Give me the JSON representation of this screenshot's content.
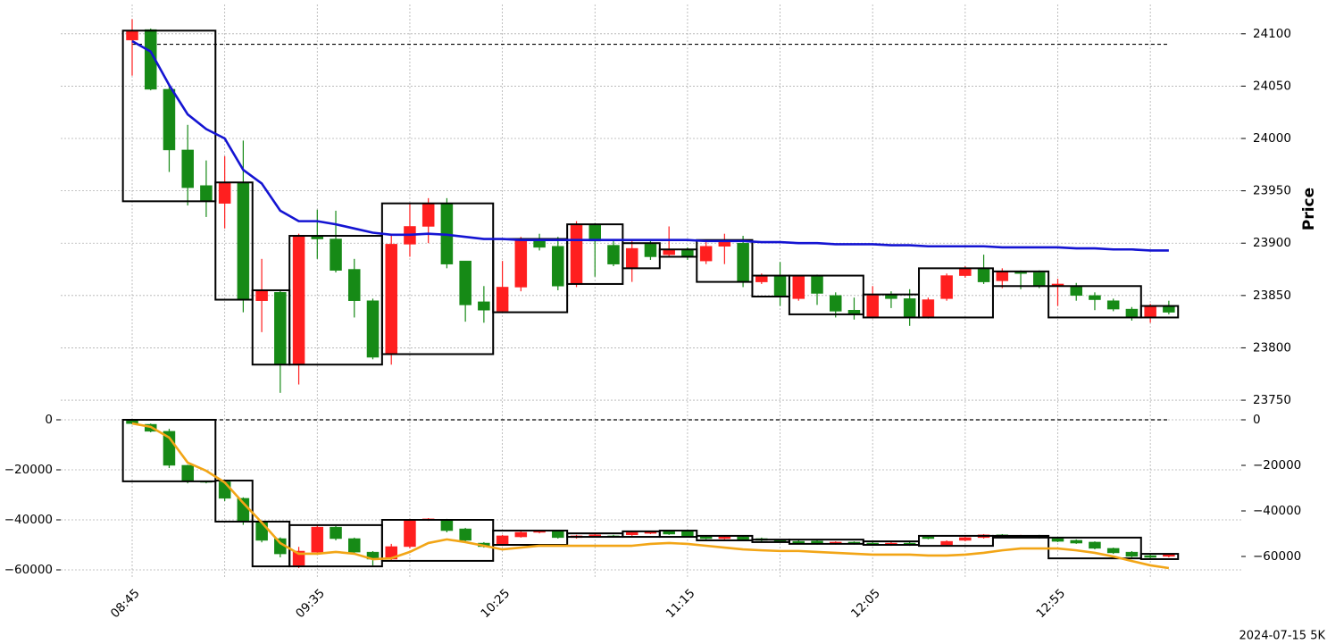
{
  "chart_data": {
    "type": "candlestick",
    "footnote": "2024-07-15 5K",
    "grid": true,
    "up_color": "#ff1f1f",
    "down_color": "#168a16",
    "box_color": "#000000",
    "categories": [
      "08:45",
      null,
      null,
      null,
      null,
      null,
      null,
      null,
      null,
      null,
      "09:35",
      null,
      null,
      null,
      null,
      null,
      null,
      null,
      null,
      null,
      "10:25",
      null,
      null,
      null,
      null,
      null,
      null,
      null,
      null,
      null,
      "11:15",
      null,
      null,
      null,
      null,
      null,
      null,
      null,
      null,
      null,
      "12:05",
      null,
      null,
      null,
      null,
      null,
      null,
      null,
      null,
      null,
      "12:55",
      null,
      null,
      null,
      null,
      null,
      null
    ],
    "panels": [
      {
        "ylabel": "Price",
        "ylim": [
          23741.5,
          24128
        ],
        "yticks": [
          23750,
          23800,
          23850,
          23900,
          23950,
          24000,
          24050,
          24100
        ],
        "reference": 24090,
        "open": [
          24094,
          24104,
          24047,
          23989,
          23955,
          23938,
          23958,
          23845,
          23853,
          23784,
          23906,
          23904,
          23875,
          23845,
          23794,
          23899,
          23916,
          23938,
          23883,
          23844,
          23835,
          23858,
          23904,
          23897,
          23861,
          23917,
          23898,
          23876,
          23899,
          23889,
          23894,
          23883,
          23897,
          23900,
          23863,
          23869,
          23847,
          23868,
          23850,
          23836,
          23829,
          23851,
          23847,
          23830,
          23847,
          23869,
          23876,
          23864,
          23873,
          23872,
          23859,
          23859,
          23850,
          23845,
          23837,
          23830,
          23840
        ],
        "high": [
          24114,
          24105,
          24051,
          24013,
          23979,
          23983,
          23998,
          23885,
          23855,
          23909,
          23932,
          23931,
          23885,
          23847,
          23909,
          23938,
          23943,
          23943,
          23883,
          23859,
          23883,
          23906,
          23909,
          23906,
          23921,
          23919,
          23904,
          23904,
          23902,
          23916,
          23896,
          23902,
          23909,
          23907,
          23871,
          23882,
          23869,
          23870,
          23853,
          23848,
          23859,
          23854,
          23856,
          23848,
          23871,
          23878,
          23889,
          23876,
          23874,
          23874,
          23866,
          23862,
          23853,
          23847,
          23839,
          23842,
          23845
        ],
        "low": [
          24060,
          24046,
          23968,
          23936,
          23925,
          23914,
          23834,
          23815,
          23757,
          23765,
          23885,
          23872,
          23829,
          23789,
          23784,
          23887,
          23900,
          23876,
          23825,
          23824,
          23834,
          23854,
          23893,
          23855,
          23858,
          23868,
          23878,
          23863,
          23884,
          23887,
          23884,
          23880,
          23880,
          23858,
          23861,
          23840,
          23845,
          23841,
          23829,
          23827,
          23828,
          23838,
          23821,
          23828,
          23845,
          23867,
          23861,
          23857,
          23856,
          23857,
          23840,
          23845,
          23836,
          23835,
          23826,
          23824,
          23832
        ],
        "close": [
          24103,
          24047,
          23989,
          23953,
          23940,
          23958,
          23846,
          23855,
          23784,
          23906,
          23904,
          23874,
          23845,
          23791,
          23899,
          23916,
          23938,
          23880,
          23841,
          23836,
          23858,
          23904,
          23896,
          23859,
          23917,
          23902,
          23880,
          23895,
          23887,
          23894,
          23887,
          23897,
          23903,
          23863,
          23869,
          23849,
          23868,
          23852,
          23835,
          23832,
          23850,
          23847,
          23830,
          23846,
          23869,
          23876,
          23863,
          23873,
          23871,
          23859,
          23861,
          23850,
          23846,
          23837,
          23829,
          23840,
          23834
        ],
        "series": [
          {
            "color": "#1414d2",
            "values": [
              24093,
              24083,
              24051,
              24023,
              24009,
              24000,
              23970,
              23957,
              23931,
              23921,
              23921,
              23918,
              23914,
              23910,
              23908,
              23908,
              23909,
              23908,
              23906,
              23904,
              23904,
              23903,
              23903,
              23903,
              23903,
              23903,
              23903,
              23903,
              23903,
              23903,
              23903,
              23902,
              23902,
              23902,
              23901,
              23901,
              23900,
              23900,
              23899,
              23899,
              23899,
              23898,
              23898,
              23897,
              23897,
              23897,
              23897,
              23896,
              23896,
              23896,
              23896,
              23895,
              23895,
              23894,
              23894,
              23893,
              23893
            ]
          }
        ],
        "boxes": [
          {
            "start": 0,
            "end": 4,
            "top": 24103,
            "bottom": 23940
          },
          {
            "start": 5,
            "end": 6,
            "top": 23958,
            "bottom": 23846
          },
          {
            "start": 7,
            "end": 8,
            "top": 23855,
            "bottom": 23784
          },
          {
            "start": 9,
            "end": 13,
            "top": 23907,
            "bottom": 23784
          },
          {
            "start": 14,
            "end": 19,
            "top": 23938,
            "bottom": 23794
          },
          {
            "start": 20,
            "end": 23,
            "top": 23904,
            "bottom": 23834
          },
          {
            "start": 24,
            "end": 26,
            "top": 23918,
            "bottom": 23861
          },
          {
            "start": 27,
            "end": 28,
            "top": 23900,
            "bottom": 23876
          },
          {
            "start": 29,
            "end": 30,
            "top": 23894,
            "bottom": 23887
          },
          {
            "start": 31,
            "end": 33,
            "top": 23903,
            "bottom": 23863
          },
          {
            "start": 34,
            "end": 35,
            "top": 23869,
            "bottom": 23849
          },
          {
            "start": 36,
            "end": 39,
            "top": 23869,
            "bottom": 23832
          },
          {
            "start": 40,
            "end": 42,
            "top": 23851,
            "bottom": 23829
          },
          {
            "start": 43,
            "end": 46,
            "top": 23876,
            "bottom": 23829
          },
          {
            "start": 47,
            "end": 49,
            "top": 23873,
            "bottom": 23859
          },
          {
            "start": 50,
            "end": 54,
            "top": 23859,
            "bottom": 23829
          },
          {
            "start": 55,
            "end": 56,
            "top": 23840,
            "bottom": 23829
          }
        ]
      },
      {
        "ylim": [
          -63571,
          3571
        ],
        "yticks": [
          {
            "value": -60000,
            "label": "−60000"
          },
          {
            "value": -40000,
            "label": "−40000"
          },
          {
            "value": -20000,
            "label": "−20000"
          },
          0
        ],
        "y2lim": [
          -69804,
          3922
        ],
        "y2ticks": [
          {
            "value": -60000,
            "label": "−60000"
          },
          {
            "value": -40000,
            "label": "−40000"
          },
          {
            "value": -20000,
            "label": "−20000"
          },
          0
        ],
        "reference": 0,
        "open": [
          0,
          -1800,
          -4600,
          -18200,
          -24600,
          -24800,
          -31400,
          -40700,
          -47500,
          -58200,
          -52900,
          -42900,
          -47500,
          -52900,
          -55700,
          -50700,
          -40000,
          -40000,
          -43600,
          -49300,
          -50000,
          -46800,
          -45000,
          -44600,
          -47100,
          -46400,
          -46400,
          -46000,
          -45400,
          -44600,
          -44600,
          -46800,
          -47500,
          -46800,
          -47500,
          -48200,
          -48600,
          -48500,
          -49600,
          -48900,
          -49300,
          -50000,
          -49300,
          -46800,
          -50000,
          -48200,
          -47100,
          -46000,
          -46800,
          -46400,
          -47500,
          -48200,
          -48900,
          -51400,
          -52900,
          -54300,
          -54600
        ],
        "high": [
          0,
          -1500,
          -3600,
          -18000,
          -24300,
          -24300,
          -31000,
          -40400,
          -47000,
          -50800,
          -42100,
          -42500,
          -47100,
          -52500,
          -49600,
          -39600,
          -39300,
          -39600,
          -43200,
          -48900,
          -46000,
          -44600,
          -44300,
          -44300,
          -46000,
          -45700,
          -46000,
          -44600,
          -44300,
          -44300,
          -44300,
          -46400,
          -46400,
          -46400,
          -47100,
          -47800,
          -48200,
          -48200,
          -48600,
          -48600,
          -48900,
          -48900,
          -48900,
          -46400,
          -48200,
          -46800,
          -45700,
          -45700,
          -46000,
          -46000,
          -47100,
          -47800,
          -48600,
          -51100,
          -52500,
          -53900,
          -53600
        ],
        "low": [
          -1800,
          -5000,
          -19300,
          -25400,
          -25400,
          -32500,
          -42000,
          -49000,
          -55000,
          -59300,
          -53600,
          -48200,
          -53600,
          -58200,
          -56400,
          -51400,
          -40400,
          -45000,
          -48600,
          -51100,
          -50400,
          -47100,
          -45400,
          -47500,
          -47500,
          -46800,
          -47100,
          -46400,
          -45700,
          -46000,
          -47100,
          -47800,
          -47800,
          -48200,
          -48600,
          -48900,
          -49600,
          -49900,
          -49900,
          -49900,
          -50400,
          -50400,
          -50400,
          -47800,
          -50400,
          -48600,
          -47500,
          -47100,
          -47100,
          -47500,
          -48900,
          -49600,
          -51800,
          -53600,
          -55000,
          -55400,
          -55000
        ],
        "close": [
          -1500,
          -4600,
          -18200,
          -24600,
          -25000,
          -31400,
          -40700,
          -48200,
          -53600,
          -52500,
          -42900,
          -47500,
          -52900,
          -55700,
          -50700,
          -40000,
          -39600,
          -44300,
          -48200,
          -50700,
          -46400,
          -45000,
          -44600,
          -47100,
          -46400,
          -46000,
          -46800,
          -45000,
          -44600,
          -45700,
          -46800,
          -47500,
          -46800,
          -47800,
          -48200,
          -48600,
          -49300,
          -49600,
          -48900,
          -49600,
          -50000,
          -49300,
          -50000,
          -47500,
          -48600,
          -47100,
          -46000,
          -46800,
          -46400,
          -47100,
          -48600,
          -49300,
          -51400,
          -53200,
          -54600,
          -55000,
          -53900
        ],
        "series": [
          {
            "color": "#f2a516",
            "axis": "y2",
            "values": [
              -1600,
              -3100,
              -7800,
              -18800,
              -22400,
              -27500,
              -36500,
              -45100,
              -54100,
              -58800,
              -58800,
              -58000,
              -58800,
              -61200,
              -60800,
              -58000,
              -54100,
              -52500,
              -53700,
              -55300,
              -56900,
              -56100,
              -55300,
              -55300,
              -55300,
              -55300,
              -55300,
              -55300,
              -54500,
              -54100,
              -54500,
              -55300,
              -56100,
              -56900,
              -57300,
              -57600,
              -57600,
              -58000,
              -58400,
              -58800,
              -59200,
              -59200,
              -59200,
              -59600,
              -59600,
              -59200,
              -58400,
              -57300,
              -56500,
              -56500,
              -56500,
              -57300,
              -58400,
              -60000,
              -62000,
              -63900,
              -65100
            ]
          }
        ],
        "boxes": [
          {
            "start": 0,
            "end": 4,
            "top": 0,
            "bottom": -24600
          },
          {
            "start": 5,
            "end": 6,
            "top": -24300,
            "bottom": -40700
          },
          {
            "start": 7,
            "end": 8,
            "top": -40700,
            "bottom": -58600
          },
          {
            "start": 9,
            "end": 13,
            "top": -42100,
            "bottom": -58600
          },
          {
            "start": 14,
            "end": 19,
            "top": -40000,
            "bottom": -56400
          },
          {
            "start": 20,
            "end": 23,
            "top": -44300,
            "bottom": -50000
          },
          {
            "start": 24,
            "end": 26,
            "top": -45400,
            "bottom": -46800
          },
          {
            "start": 27,
            "end": 28,
            "top": -44600,
            "bottom": -46800
          },
          {
            "start": 29,
            "end": 30,
            "top": -44300,
            "bottom": -46800
          },
          {
            "start": 31,
            "end": 33,
            "top": -46400,
            "bottom": -48200
          },
          {
            "start": 34,
            "end": 35,
            "top": -47900,
            "bottom": -48900
          },
          {
            "start": 36,
            "end": 39,
            "top": -47900,
            "bottom": -49600
          },
          {
            "start": 40,
            "end": 42,
            "top": -48600,
            "bottom": -50000
          },
          {
            "start": 43,
            "end": 46,
            "top": -46400,
            "bottom": -50400
          },
          {
            "start": 47,
            "end": 49,
            "top": -46400,
            "bottom": -47100
          },
          {
            "start": 50,
            "end": 54,
            "top": -47100,
            "bottom": -55400
          },
          {
            "start": 55,
            "end": 56,
            "top": -53600,
            "bottom": -55700
          }
        ]
      }
    ]
  }
}
